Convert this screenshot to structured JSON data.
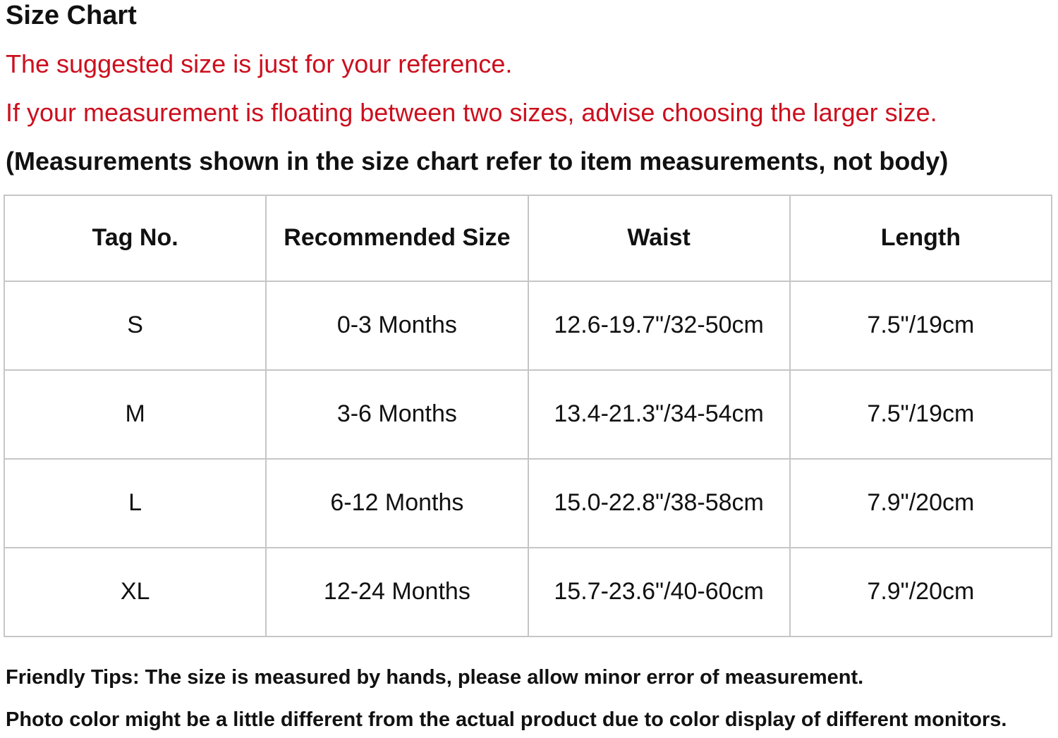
{
  "page": {
    "title": "Size Chart",
    "red_notes": [
      "The suggested size is just for your reference.",
      "If your measurement is floating between two sizes, advise choosing the larger size."
    ],
    "bold_note": "(Measurements shown in the size chart refer to item measurements, not body)",
    "footer_tips": [
      "Friendly Tips: The size is measured by hands, please allow minor error of measurement.",
      "Photo color might be a little different from the actual product due to color display of different monitors."
    ]
  },
  "size_table": {
    "headers": [
      "Tag No.",
      "Recommended Size",
      "Waist",
      "Length"
    ],
    "rows": [
      {
        "tag": "S",
        "recommended_size": "0-3 Months",
        "waist": "12.6-19.7\"/32-50cm",
        "length": "7.5\"/19cm"
      },
      {
        "tag": "M",
        "recommended_size": "3-6 Months",
        "waist": "13.4-21.3\"/34-54cm",
        "length": "7.5\"/19cm"
      },
      {
        "tag": "L",
        "recommended_size": "6-12 Months",
        "waist": "15.0-22.8\"/38-58cm",
        "length": "7.9\"/20cm"
      },
      {
        "tag": "XL",
        "recommended_size": "12-24 Months",
        "waist": "15.7-23.6\"/40-60cm",
        "length": "7.9\"/20cm"
      }
    ]
  },
  "chart_data": {
    "type": "table",
    "title": "Size Chart",
    "columns": [
      "Tag No.",
      "Recommended Size",
      "Waist",
      "Length"
    ],
    "rows": [
      [
        "S",
        "0-3 Months",
        "12.6-19.7\"/32-50cm",
        "7.5\"/19cm"
      ],
      [
        "M",
        "3-6 Months",
        "13.4-21.3\"/34-54cm",
        "7.5\"/19cm"
      ],
      [
        "L",
        "6-12 Months",
        "15.0-22.8\"/38-58cm",
        "7.9\"/20cm"
      ],
      [
        "XL",
        "12-24 Months",
        "15.7-23.6\"/40-60cm",
        "7.9\"/20cm"
      ]
    ]
  },
  "colors": {
    "accent_red": "#cc0f1e",
    "table_border": "#c6c6c6",
    "text": "#111111",
    "background": "#ffffff"
  }
}
